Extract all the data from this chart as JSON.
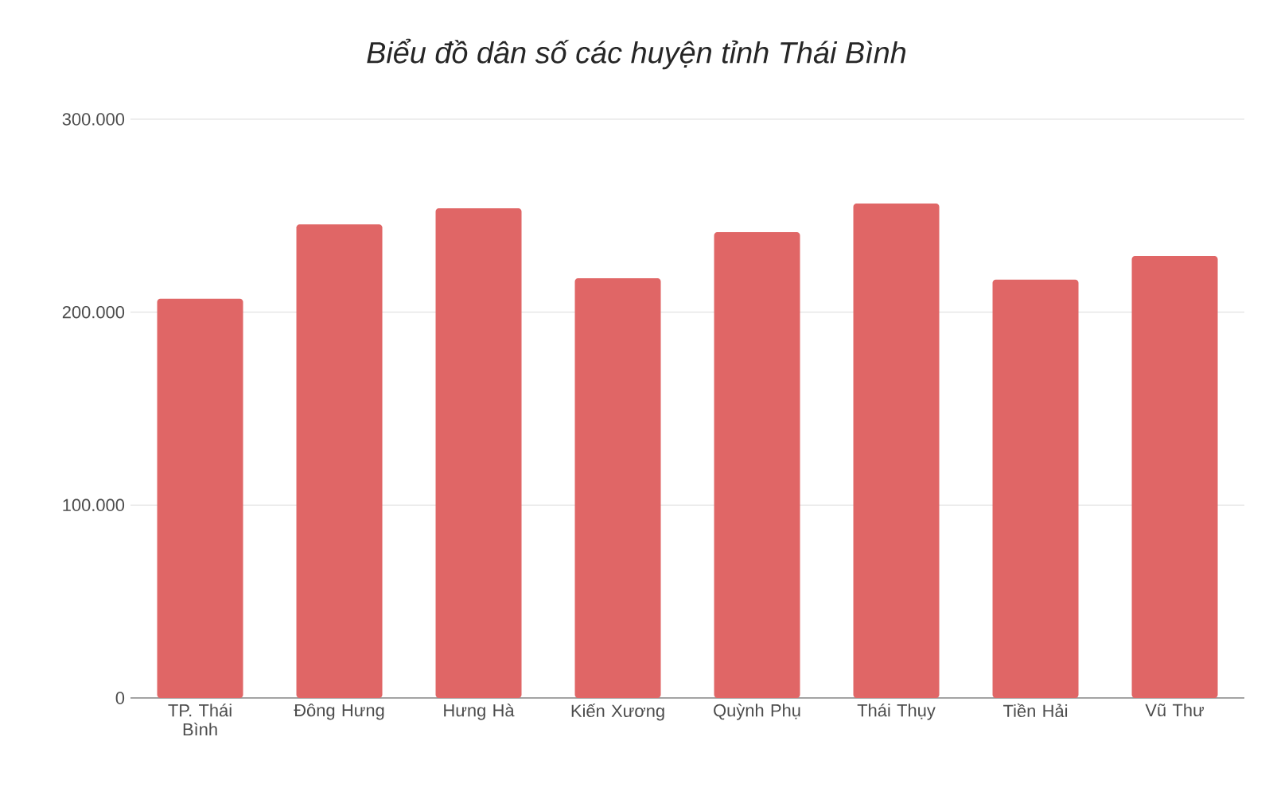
{
  "chart_data": {
    "type": "bar",
    "title": "Biểu đồ dân số các huyện tỉnh Thái Bình",
    "categories": [
      "TP. Thái Bình",
      "Đông Hưng",
      "Hưng Hà",
      "Kiến Xương",
      "Quỳnh Phụ",
      "Thái Thụy",
      "Tiền Hải",
      "Vũ Thư"
    ],
    "values": [
      207000,
      245500,
      253800,
      217600,
      241500,
      256300,
      216800,
      229100
    ],
    "color": "#e06666",
    "ylim": [
      0,
      300000
    ],
    "yticks": [
      0,
      {
        "value": 100000,
        "label": "100.000"
      },
      {
        "value": 200000,
        "label": "200.000"
      },
      {
        "value": 300000,
        "label": "300.000"
      }
    ],
    "grid": "y"
  }
}
